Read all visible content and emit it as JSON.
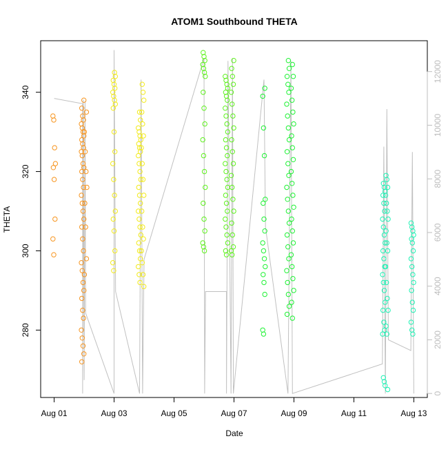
{
  "chart_data": {
    "type": "scatter",
    "title": "ATOM1 Southbound THETA",
    "xlabel": "Date",
    "ylabel": "THETA",
    "x_ticks": [
      {
        "day": 0,
        "label": "Aug 01"
      },
      {
        "day": 2,
        "label": "Aug 03"
      },
      {
        "day": 4,
        "label": "Aug 05"
      },
      {
        "day": 6,
        "label": "Aug 07"
      },
      {
        "day": 8,
        "label": "Aug 09"
      },
      {
        "day": 10,
        "label": "Aug 11"
      },
      {
        "day": 12,
        "label": "Aug 13"
      }
    ],
    "xlim_days": [
      -0.45,
      12.45
    ],
    "ylim": [
      263,
      353
    ],
    "y_ticks": [
      280,
      300,
      320,
      340
    ],
    "y2lim": [
      -150,
      13150
    ],
    "y2_ticks": [
      0,
      2000,
      4000,
      6000,
      8000,
      10000,
      12000
    ],
    "grid": false,
    "legend": "none",
    "point_groups": [
      {
        "x_day": 0.0,
        "color": "#f7941d",
        "values": [
          334,
          333,
          326,
          322,
          321,
          318,
          308,
          303,
          299
        ]
      },
      {
        "x_day": 0.95,
        "color": "#f7941d",
        "values": [
          338,
          336,
          334,
          333,
          332,
          331,
          330,
          329,
          328,
          327,
          326,
          325,
          324,
          322,
          321,
          320,
          318,
          316,
          314,
          312,
          310,
          308,
          306,
          303,
          300,
          297,
          295,
          292,
          290,
          288,
          285,
          283,
          280,
          278,
          276,
          274,
          272
        ]
      },
      {
        "x_day": 1.05,
        "color": "#f7941d",
        "values": [
          335,
          330,
          325,
          320,
          316,
          312,
          306,
          298,
          294
        ]
      },
      {
        "x_day": 2.0,
        "color": "#f2ea1b",
        "values": [
          345,
          344,
          343,
          342,
          341,
          340,
          339,
          338,
          337,
          336,
          330,
          325,
          322,
          318,
          314,
          310,
          308,
          305,
          300,
          297,
          295
        ]
      },
      {
        "x_day": 2.85,
        "color": "#f2ea1b",
        "values": [
          335,
          333,
          331,
          330,
          329,
          328,
          327,
          326,
          325,
          324,
          322,
          320,
          318,
          316,
          314,
          312,
          310,
          308,
          306,
          304,
          302,
          300,
          298,
          296,
          294,
          292
        ]
      },
      {
        "x_day": 2.95,
        "color": "#f2ea1b",
        "values": [
          342,
          340,
          338,
          335,
          332,
          329,
          326,
          322,
          318,
          314,
          310,
          306,
          303,
          300,
          297,
          294,
          291
        ]
      },
      {
        "x_day": 5.0,
        "color": "#5df21b",
        "values": [
          350,
          349,
          348,
          347,
          346,
          345,
          344,
          340,
          336,
          332,
          328,
          324,
          320,
          316,
          312,
          308,
          305,
          302,
          301,
          300
        ]
      },
      {
        "x_day": 5.75,
        "color": "#5df21b",
        "values": [
          344,
          343,
          342,
          341,
          340,
          339,
          338,
          336,
          334,
          332,
          330,
          328,
          326,
          324,
          322,
          320,
          318,
          316,
          314,
          312,
          310,
          308,
          306,
          304,
          302,
          300,
          299
        ]
      },
      {
        "x_day": 5.95,
        "color": "#5df21b",
        "values": [
          348,
          346,
          344,
          342,
          340,
          337,
          334,
          331,
          328,
          325,
          322,
          319,
          316,
          313,
          310,
          307,
          304,
          301,
          300,
          299
        ]
      },
      {
        "x_day": 7.0,
        "color": "#1df233",
        "values": [
          341,
          339,
          331,
          324,
          313,
          312,
          308,
          305,
          302,
          300,
          298,
          296,
          294,
          292,
          289,
          280,
          279
        ]
      },
      {
        "x_day": 7.8,
        "color": "#1df233",
        "values": [
          348,
          346,
          344,
          342,
          340,
          337,
          334,
          331,
          328,
          325,
          322,
          319,
          316,
          313,
          310,
          307,
          304,
          301,
          298,
          295,
          292,
          289,
          286,
          284
        ]
      },
      {
        "x_day": 7.95,
        "color": "#1df233",
        "values": [
          347,
          344,
          341,
          338,
          335,
          332,
          329,
          326,
          323,
          320,
          317,
          314,
          311,
          308,
          305,
          302,
          299,
          296,
          293,
          290,
          287,
          283
        ]
      },
      {
        "x_day": 11.0,
        "color": "#1df2b4",
        "values": [
          317,
          316,
          315,
          314,
          312,
          310,
          308,
          306,
          304,
          302,
          300,
          298,
          296,
          294,
          292,
          290,
          287,
          285,
          282,
          280,
          279,
          268,
          267,
          266
        ]
      },
      {
        "x_day": 11.1,
        "color": "#1df2b4",
        "values": [
          319,
          318,
          316,
          314,
          312,
          310,
          308,
          305,
          302,
          300,
          296,
          292,
          288,
          285,
          281,
          279,
          265
        ]
      },
      {
        "x_day": 11.95,
        "color": "#1df2b4",
        "values": [
          307,
          306,
          305,
          304,
          303,
          302,
          300,
          298,
          296,
          294,
          292,
          290,
          287,
          285,
          282,
          280,
          279
        ]
      }
    ],
    "line_series": {
      "color": "#c0c0c0",
      "axis": "right",
      "path": [
        {
          "x": 0.0,
          "y": 11000
        },
        {
          "x": 0.95,
          "y": 10800
        },
        {
          "x": 0.95,
          "y": 0
        },
        {
          "x": 0.97,
          "y": 10950
        },
        {
          "x": 1.0,
          "y": 500
        },
        {
          "x": 1.03,
          "y": 10900
        },
        {
          "x": 1.05,
          "y": 3000
        },
        {
          "x": 2.0,
          "y": 0
        },
        {
          "x": 2.0,
          "y": 12800
        },
        {
          "x": 2.05,
          "y": 3800
        },
        {
          "x": 2.85,
          "y": 0
        },
        {
          "x": 2.9,
          "y": 11700
        },
        {
          "x": 2.95,
          "y": 0
        },
        {
          "x": 3.0,
          "y": 5000
        },
        {
          "x": 5.0,
          "y": 12500
        },
        {
          "x": 5.02,
          "y": 0
        },
        {
          "x": 5.05,
          "y": 3800
        },
        {
          "x": 5.75,
          "y": 3800
        },
        {
          "x": 5.75,
          "y": 0
        },
        {
          "x": 5.8,
          "y": 12400
        },
        {
          "x": 5.9,
          "y": 0
        },
        {
          "x": 5.95,
          "y": 12500
        },
        {
          "x": 5.98,
          "y": 0
        },
        {
          "x": 7.0,
          "y": 11700
        },
        {
          "x": 7.05,
          "y": 6200
        },
        {
          "x": 7.8,
          "y": 0
        },
        {
          "x": 7.9,
          "y": 12400
        },
        {
          "x": 7.95,
          "y": 0
        },
        {
          "x": 10.95,
          "y": 1100
        },
        {
          "x": 11.0,
          "y": 9200
        },
        {
          "x": 11.05,
          "y": 0
        },
        {
          "x": 11.1,
          "y": 10600
        },
        {
          "x": 11.15,
          "y": 2000
        },
        {
          "x": 11.9,
          "y": 1600
        },
        {
          "x": 11.95,
          "y": 9000
        },
        {
          "x": 12.0,
          "y": 0
        }
      ]
    }
  }
}
